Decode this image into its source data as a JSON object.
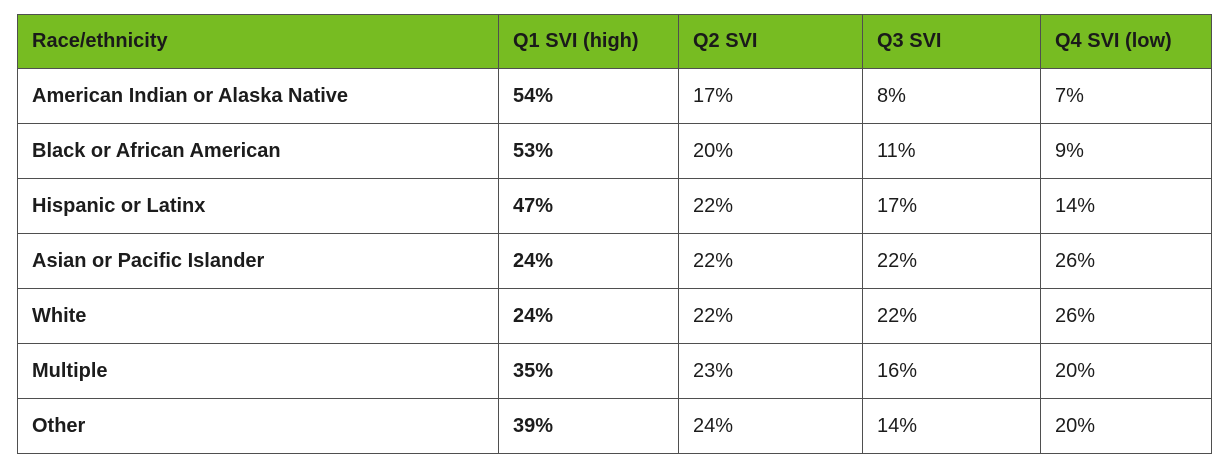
{
  "chart_data": {
    "type": "table",
    "title": "",
    "columns": [
      "Race/ethnicity",
      "Q1 SVI (high)",
      "Q2 SVI",
      "Q3 SVI",
      "Q4 SVI (low)"
    ],
    "rows": [
      [
        "American Indian or Alaska Native",
        "54%",
        "17%",
        "8%",
        "7%"
      ],
      [
        "Black or African American",
        "53%",
        "20%",
        "11%",
        "9%"
      ],
      [
        "Hispanic or Latinx",
        "47%",
        "22%",
        "17%",
        "14%"
      ],
      [
        "Asian or Pacific Islander",
        "24%",
        "22%",
        "22%",
        "26%"
      ],
      [
        "White",
        "24%",
        "22%",
        "22%",
        "26%"
      ],
      [
        "Multiple",
        "35%",
        "23%",
        "16%",
        "20%"
      ],
      [
        "Other",
        "39%",
        "24%",
        "14%",
        "20%"
      ]
    ],
    "layout_hints": {
      "header_row": true,
      "bold_columns": [
        "Race/ethnicity",
        "Q1 SVI (high)"
      ],
      "grid": true
    }
  },
  "colors": {
    "header_bg": "#77BC22",
    "border": "#4F4F4F",
    "text": "#1C1C1C",
    "background": "#FFFFFF"
  }
}
